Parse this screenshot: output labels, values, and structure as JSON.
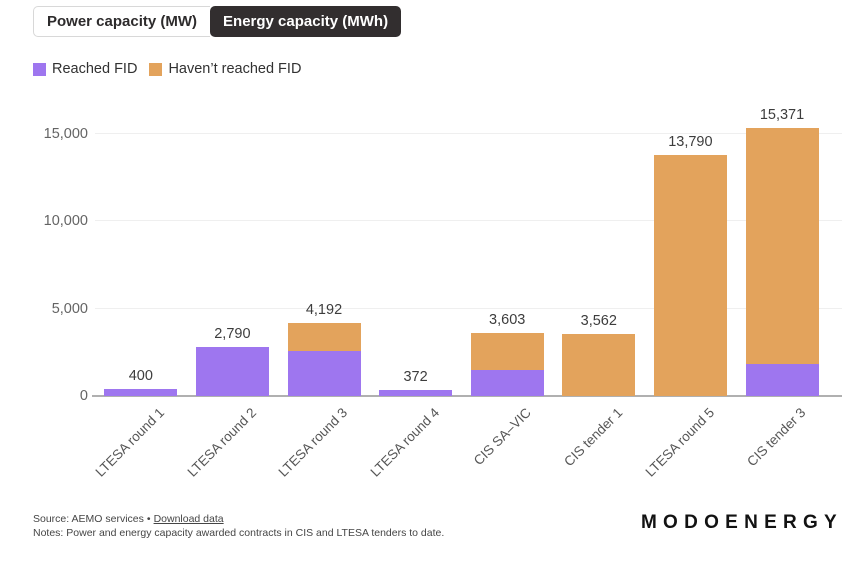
{
  "tabs": {
    "power": {
      "label": "Power capacity (MW)"
    },
    "energy": {
      "label": "Energy capacity (MWh)"
    }
  },
  "legend": {
    "reached": {
      "label": "Reached FID",
      "color": "#9e76ef"
    },
    "not_reached": {
      "label": "Haven’t reached FID",
      "color": "#e3a35c"
    }
  },
  "chart_data": {
    "type": "bar",
    "stacked": true,
    "title": "",
    "xlabel": "",
    "ylabel": "",
    "categories": [
      "LTESA round 1",
      "LTESA round 2",
      "LTESA round 3",
      "LTESA round 4",
      "CIS SA–VIC",
      "CIS tender 1",
      "LTESA round 5",
      "CIS tender 3"
    ],
    "series": [
      {
        "name": "Reached FID",
        "color": "#9e76ef",
        "values": [
          400,
          2790,
          2600,
          372,
          1500,
          0,
          0,
          1850
        ]
      },
      {
        "name": "Haven’t reached FID",
        "color": "#e3a35c",
        "values": [
          0,
          0,
          1592,
          0,
          2103,
          3562,
          13790,
          13521
        ]
      }
    ],
    "totals": [
      400,
      2790,
      4192,
      372,
      3603,
      3562,
      13790,
      15371
    ],
    "total_labels": [
      "400",
      "2,790",
      "4,192",
      "372",
      "3,603",
      "3,562",
      "13,790",
      "15,371"
    ],
    "yticks": [
      {
        "value": 0,
        "label": "0"
      },
      {
        "value": 5000,
        "label": "5,000"
      },
      {
        "value": 10000,
        "label": "10,000"
      },
      {
        "value": 15000,
        "label": "15,000"
      }
    ],
    "ylim": [
      0,
      16650
    ],
    "grid": "horizontal",
    "legend_position": "top-left"
  },
  "footer": {
    "source_prefix": "Source: AEMO services",
    "separator": "•",
    "download_link": "Download data",
    "notes": "Notes: Power and energy capacity awarded contracts in CIS and LTESA tenders to date."
  },
  "logo": {
    "text": "MODOENERGY"
  }
}
